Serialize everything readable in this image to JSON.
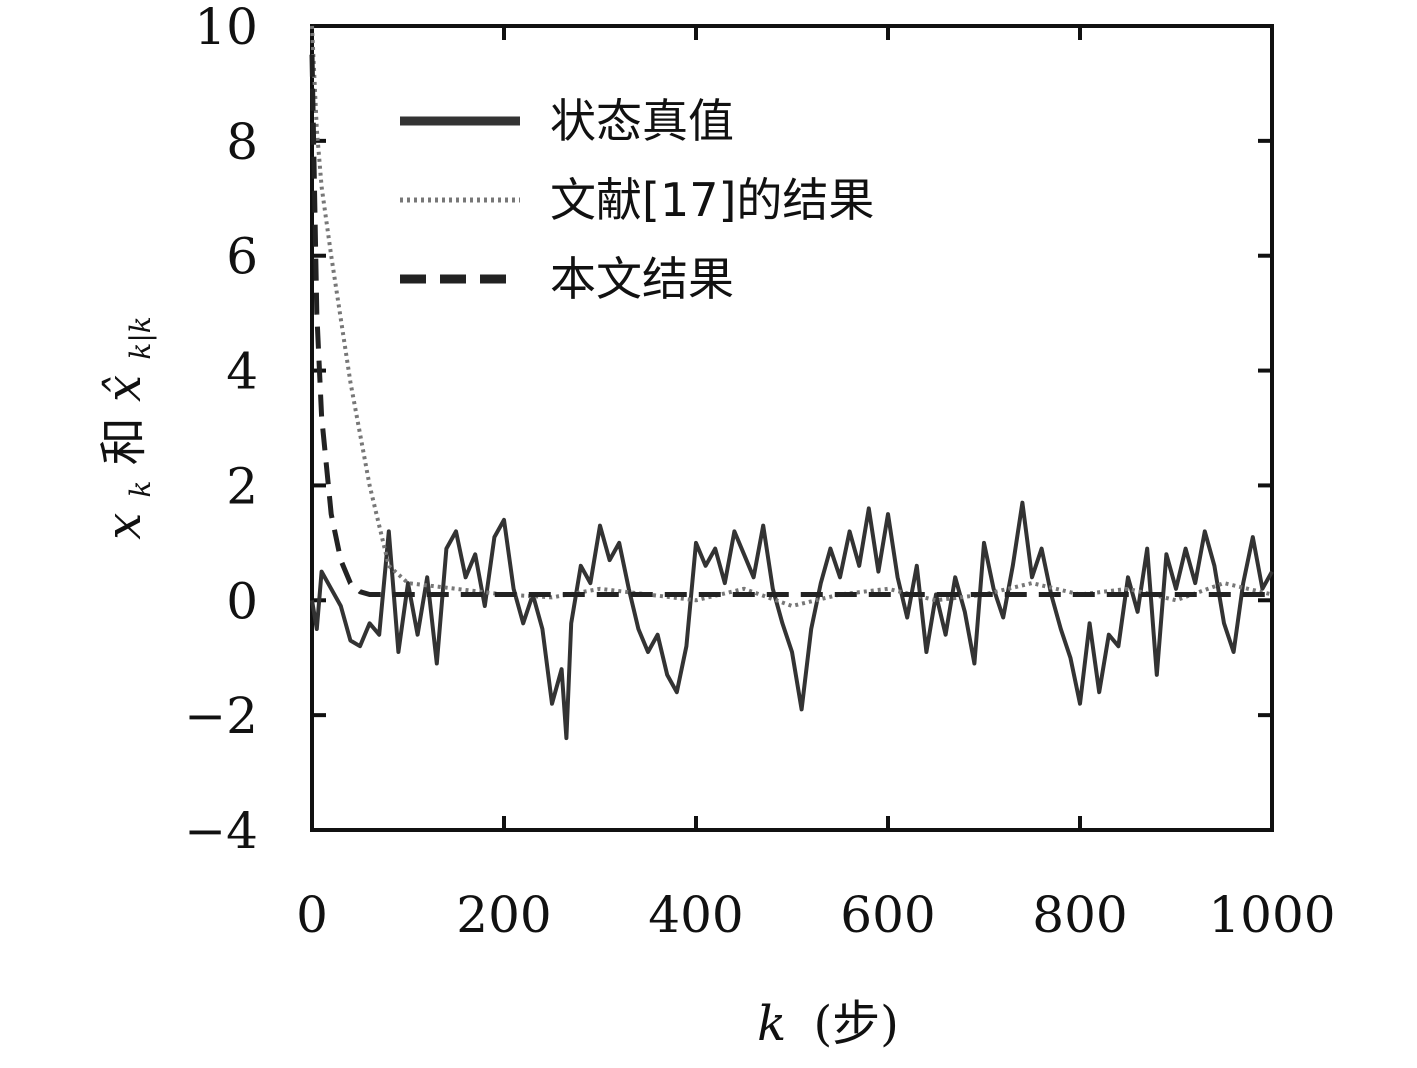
{
  "chart_data": {
    "type": "line",
    "xlabel_var": "k",
    "xlabel_unit": "(步)",
    "ylabel_var1": "x",
    "ylabel_sub1": "k",
    "ylabel_mid": "和",
    "ylabel_var2": "x̂",
    "ylabel_sub2": "k|k",
    "xlim": [
      0,
      1000
    ],
    "ylim": [
      -4,
      10
    ],
    "x_ticks": [
      0,
      200,
      400,
      600,
      800,
      1000
    ],
    "x_tick_labels": [
      "0",
      "200",
      "400",
      "600",
      "800",
      "1000"
    ],
    "y_ticks": [
      -4,
      -2,
      0,
      2,
      4,
      6,
      8,
      10
    ],
    "y_tick_labels": [
      "−4",
      "−2",
      "0",
      "2",
      "4",
      "6",
      "8",
      "10"
    ],
    "legend_position": "top-left",
    "grid": false,
    "series": [
      {
        "name": "状态真值",
        "style": "solid",
        "color": "#333333",
        "x": [
          0,
          5,
          10,
          20,
          30,
          40,
          50,
          60,
          70,
          80,
          90,
          100,
          110,
          120,
          130,
          140,
          150,
          160,
          170,
          180,
          190,
          200,
          210,
          220,
          230,
          240,
          250,
          260,
          265,
          270,
          280,
          290,
          300,
          310,
          320,
          330,
          340,
          350,
          360,
          370,
          380,
          390,
          400,
          410,
          420,
          430,
          440,
          450,
          460,
          470,
          480,
          490,
          500,
          510,
          520,
          530,
          540,
          550,
          560,
          570,
          580,
          590,
          600,
          610,
          620,
          630,
          640,
          650,
          660,
          670,
          680,
          690,
          700,
          710,
          720,
          730,
          740,
          750,
          760,
          770,
          780,
          790,
          800,
          810,
          820,
          830,
          840,
          850,
          860,
          870,
          880,
          890,
          900,
          910,
          920,
          930,
          940,
          950,
          960,
          970,
          980,
          990,
          1000
        ],
        "y": [
          0.0,
          -0.5,
          0.5,
          0.2,
          -0.1,
          -0.7,
          -0.8,
          -0.4,
          -0.6,
          1.2,
          -0.9,
          0.3,
          -0.6,
          0.4,
          -1.1,
          0.9,
          1.2,
          0.4,
          0.8,
          -0.1,
          1.1,
          1.4,
          0.2,
          -0.4,
          0.1,
          -0.5,
          -1.8,
          -1.2,
          -2.4,
          -0.4,
          0.6,
          0.3,
          1.3,
          0.7,
          1.0,
          0.2,
          -0.5,
          -0.9,
          -0.6,
          -1.3,
          -1.6,
          -0.8,
          1.0,
          0.6,
          0.9,
          0.3,
          1.2,
          0.8,
          0.4,
          1.3,
          0.2,
          -0.4,
          -0.9,
          -1.9,
          -0.5,
          0.3,
          0.9,
          0.4,
          1.2,
          0.6,
          1.6,
          0.5,
          1.5,
          0.4,
          -0.3,
          0.6,
          -0.9,
          0.1,
          -0.6,
          0.4,
          -0.2,
          -1.1,
          1.0,
          0.2,
          -0.3,
          0.6,
          1.7,
          0.4,
          0.9,
          0.1,
          -0.5,
          -1.0,
          -1.8,
          -0.4,
          -1.6,
          -0.6,
          -0.8,
          0.4,
          -0.2,
          0.9,
          -1.3,
          0.8,
          0.2,
          0.9,
          0.3,
          1.2,
          0.6,
          -0.4,
          -0.9,
          0.3,
          1.1,
          0.2,
          0.5
        ]
      },
      {
        "name": "文献[17]的结果",
        "style": "dotted",
        "color": "#777777",
        "x": [
          0,
          5,
          10,
          20,
          30,
          40,
          50,
          60,
          70,
          80,
          100,
          150,
          200,
          250,
          300,
          350,
          400,
          450,
          500,
          550,
          600,
          650,
          700,
          750,
          800,
          850,
          900,
          950,
          1000
        ],
        "y": [
          10,
          8.2,
          7.2,
          6.0,
          4.9,
          3.8,
          2.9,
          2.0,
          1.3,
          0.6,
          0.3,
          0.2,
          0.1,
          0.05,
          0.2,
          0.1,
          0.0,
          0.2,
          -0.1,
          0.1,
          0.2,
          0.0,
          0.1,
          0.3,
          0.1,
          0.2,
          0.0,
          0.3,
          0.1
        ]
      },
      {
        "name": "本文结果",
        "style": "dashed",
        "color": "#222222",
        "x": [
          0,
          5,
          10,
          20,
          30,
          40,
          50,
          60,
          70,
          80,
          100,
          150,
          200,
          250,
          300,
          350,
          400,
          450,
          500,
          550,
          600,
          650,
          700,
          750,
          800,
          850,
          900,
          950,
          1000
        ],
        "y": [
          9.5,
          5.0,
          3.2,
          1.5,
          0.7,
          0.3,
          0.15,
          0.1,
          0.1,
          0.1,
          0.1,
          0.1,
          0.1,
          0.1,
          0.1,
          0.1,
          0.1,
          0.1,
          0.1,
          0.1,
          0.1,
          0.1,
          0.1,
          0.1,
          0.1,
          0.1,
          0.1,
          0.1,
          0.1
        ]
      }
    ]
  }
}
